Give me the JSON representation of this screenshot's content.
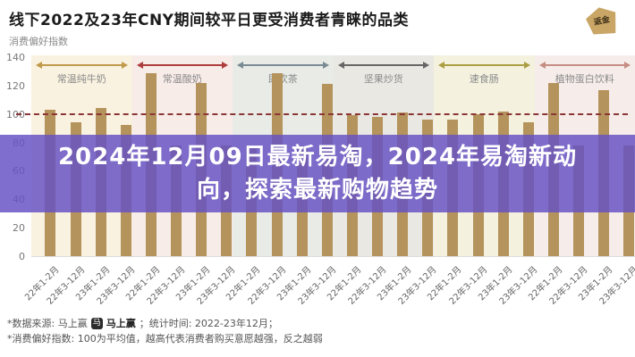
{
  "title": "线下2022及23年CNY期间较平日更受消费者青睐的品类",
  "watermark_text": "返金",
  "overlay": {
    "line1": "2024年12月09日最新易淘，2024年易淘新动",
    "line2": "向，探索最新购物趋势",
    "background_color": "rgba(102,82,196,0.84)"
  },
  "chart_data": {
    "type": "bar",
    "title": "线下2022及23年CNY期间较平日更受消费者青睐的品类",
    "ylabel": "消费偏好指数",
    "ylim": [
      0,
      140
    ],
    "yticks": [
      0,
      20,
      40,
      60,
      80,
      100,
      120,
      140
    ],
    "reference_line": {
      "value": 100,
      "style": "dashed",
      "color": "#8b3636"
    },
    "bar_color": "#b5935c",
    "period_labels": [
      "22年1-2月",
      "22年3-12月",
      "23年1-2月",
      "23年3-12月"
    ],
    "groups": [
      {
        "name": "常温纯牛奶",
        "band_color": "#faf2e0",
        "arrow_color": "#c09a4a",
        "values": [
          103,
          94,
          104,
          92
        ]
      },
      {
        "name": "常温酸奶",
        "band_color": "#f8ece9",
        "arrow_color": "#ae3e3e",
        "values": [
          129,
          78,
          122,
          78
        ]
      },
      {
        "name": "即饮茶",
        "band_color": "#e8ebe6",
        "arrow_color": "#7b8b93",
        "values": [
          78,
          129,
          78,
          121
        ]
      },
      {
        "name": "坚果炒货",
        "band_color": "#eae8e3",
        "arrow_color": "#666666",
        "values": [
          99,
          98,
          101,
          96
        ]
      },
      {
        "name": "速食肠",
        "band_color": "#f4f1df",
        "arrow_color": "#ab9e43",
        "values": [
          96,
          100,
          102,
          94
        ]
      },
      {
        "name": "植物蛋白饮料",
        "band_color": "#f6edea",
        "arrow_color": "#c68d84",
        "values": [
          122,
          78,
          117,
          78
        ]
      }
    ]
  },
  "footer": {
    "line1_prefix": "*数据来源: 马上赢",
    "brand_icon_glyph": "马",
    "brand": "马上赢",
    "line1_suffix": "；统计时间: 2022-23年12月；",
    "line2": "*消费偏好指数: 100为平均值，越高代表消费者购买意愿越强，反之越弱"
  }
}
